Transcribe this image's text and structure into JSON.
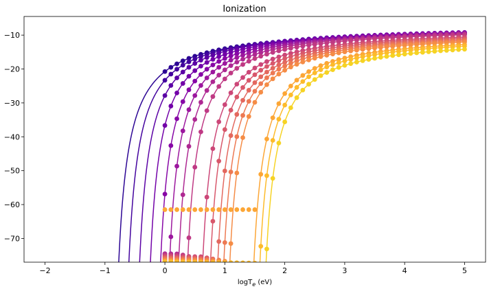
{
  "chart_data": {
    "type": "line",
    "title": "Ionization",
    "xlabel": "logT",
    "xlabel_sub": "e",
    "xlabel_unit": " (eV)",
    "ylabel": "",
    "xlim": [
      -2.35,
      5.35
    ],
    "ylim": [
      -77,
      -4.5
    ],
    "xticks": [
      -2,
      -1,
      0,
      1,
      2,
      3,
      4,
      5
    ],
    "yticks": [
      -70,
      -60,
      -50,
      -40,
      -30,
      -20,
      -10
    ],
    "xtick_labels": [
      "−2",
      "−1",
      "0",
      "1",
      "2",
      "3",
      "4",
      "5"
    ],
    "ytick_labels": [
      "−70",
      "−60",
      "−50",
      "−40",
      "−30",
      "−20",
      "−10"
    ],
    "grid": false,
    "legend": "none",
    "colormap": "plasma",
    "points_x_range": [
      0,
      5
    ],
    "points_per_series": 51,
    "series": [
      {
        "threshold": -0.95,
        "plateau": -7.6,
        "k": 1.2,
        "floor": null,
        "floor_value": null,
        "color": "#2c0594"
      },
      {
        "threshold": -0.78,
        "plateau": -7.3,
        "k": 1.2,
        "floor": null,
        "floor_value": null,
        "color": "#43039e"
      },
      {
        "threshold": -0.6,
        "plateau": -7.0,
        "k": 1.2,
        "floor": null,
        "floor_value": null,
        "color": "#5b01a5"
      },
      {
        "threshold": -0.42,
        "plateau": -6.9,
        "k": 1.2,
        "floor": null,
        "floor_value": null,
        "color": "#7201a8"
      },
      {
        "threshold": -0.25,
        "plateau": -6.9,
        "k": 1.2,
        "floor": null,
        "floor_value": null,
        "color": "#8707a6"
      },
      {
        "threshold": -0.1,
        "plateau": -7.0,
        "k": 1.2,
        "floor": null,
        "floor_value": null,
        "color": "#9c179e"
      },
      {
        "threshold": 0.05,
        "plateau": -7.1,
        "k": 1.2,
        "floor": -74.5,
        "floor_value": -74.5,
        "color": "#ae2892"
      },
      {
        "threshold": 0.2,
        "plateau": -7.3,
        "k": 1.2,
        "floor": -74.8,
        "floor_value": -74.8,
        "color": "#bf3984"
      },
      {
        "threshold": 0.45,
        "plateau": -7.8,
        "k": 1.2,
        "floor": -75.2,
        "floor_value": -75.2,
        "color": "#cc4778"
      },
      {
        "threshold": 0.58,
        "plateau": -8.1,
        "k": 1.2,
        "floor": -75.5,
        "floor_value": -75.5,
        "color": "#d8576b"
      },
      {
        "threshold": 0.7,
        "plateau": -8.4,
        "k": 1.2,
        "floor": -75.8,
        "floor_value": -75.8,
        "color": "#e3685f"
      },
      {
        "threshold": 0.8,
        "plateau": -8.7,
        "k": 1.2,
        "floor": -76.1,
        "floor_value": -76.1,
        "color": "#ed7953"
      },
      {
        "threshold": 0.9,
        "plateau": -9.0,
        "k": 1.2,
        "floor": -76.4,
        "floor_value": -76.4,
        "color": "#f58c46"
      },
      {
        "threshold": 1.3,
        "plateau": -9.4,
        "k": 1.2,
        "floor": -61.5,
        "floor_value": -61.5,
        "color": "#fca636"
      },
      {
        "threshold": 1.4,
        "plateau": -9.8,
        "k": 1.2,
        "floor": -76.8,
        "floor_value": -76.8,
        "color": "#fdbb2b"
      },
      {
        "threshold": 1.5,
        "plateau": -10.6,
        "k": 1.2,
        "floor": -77.5,
        "floor_value": -77.5,
        "color": "#f6d324"
      }
    ]
  }
}
